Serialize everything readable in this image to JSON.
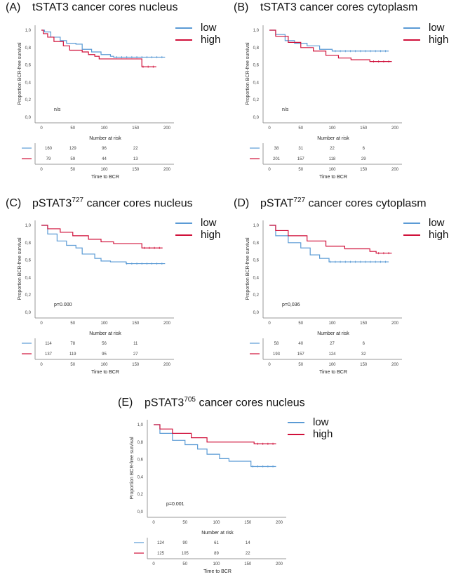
{
  "colors": {
    "low": "#5b9bd5",
    "high": "#d0103a",
    "axis": "#999999",
    "text": "#444444"
  },
  "common": {
    "ylabel": "Proportion BCR-free survival",
    "xlabel": "Time to BCR",
    "risk_title": "Number at risk",
    "legend_low": "low",
    "legend_high": "high"
  },
  "chart_data": [
    {
      "type": "line",
      "panel": "(A)",
      "title": "tSTAT3 cancer cores nucleus",
      "title_sup": "",
      "title_after": "",
      "annotation": "n/s",
      "xticks": [
        0,
        50,
        100,
        150,
        200
      ],
      "yticks": [
        "0,0",
        "0,2",
        "0,4",
        "0,6",
        "0,8",
        "1,0"
      ],
      "xlim": [
        0,
        200
      ],
      "ylim": [
        0,
        1
      ],
      "series": [
        {
          "name": "low",
          "points": [
            [
              0,
              1
            ],
            [
              5,
              0.98
            ],
            [
              15,
              0.92
            ],
            [
              30,
              0.88
            ],
            [
              40,
              0.85
            ],
            [
              55,
              0.84
            ],
            [
              65,
              0.78
            ],
            [
              80,
              0.75
            ],
            [
              95,
              0.72
            ],
            [
              110,
              0.7
            ],
            [
              115,
              0.69
            ],
            [
              197,
              0.69
            ]
          ]
        },
        {
          "name": "high",
          "points": [
            [
              0,
              1
            ],
            [
              3,
              0.96
            ],
            [
              10,
              0.92
            ],
            [
              20,
              0.87
            ],
            [
              35,
              0.82
            ],
            [
              45,
              0.77
            ],
            [
              65,
              0.75
            ],
            [
              75,
              0.72
            ],
            [
              85,
              0.7
            ],
            [
              92,
              0.67
            ],
            [
              160,
              0.67
            ],
            [
              160,
              0.58
            ],
            [
              183,
              0.58
            ]
          ]
        }
      ],
      "risk": {
        "low": [
          "160",
          "129",
          "96",
          "22"
        ],
        "high": [
          "79",
          "59",
          "44",
          "13"
        ]
      }
    },
    {
      "type": "line",
      "panel": "(B)",
      "title": "tSTAT3 cancer cores cytoplasm",
      "title_sup": "",
      "title_after": "",
      "annotation": "n/s",
      "xticks": [
        0,
        50,
        100,
        150,
        200
      ],
      "yticks": [
        "0,0",
        "0,2",
        "0,4",
        "0,6",
        "0,8",
        "1,0"
      ],
      "xlim": [
        0,
        200
      ],
      "ylim": [
        0,
        1
      ],
      "series": [
        {
          "name": "low",
          "points": [
            [
              0,
              1
            ],
            [
              10,
              0.95
            ],
            [
              25,
              0.88
            ],
            [
              40,
              0.85
            ],
            [
              60,
              0.82
            ],
            [
              80,
              0.78
            ],
            [
              100,
              0.76
            ],
            [
              190,
              0.76
            ]
          ]
        },
        {
          "name": "high",
          "points": [
            [
              0,
              1
            ],
            [
              10,
              0.93
            ],
            [
              30,
              0.86
            ],
            [
              50,
              0.8
            ],
            [
              70,
              0.76
            ],
            [
              90,
              0.71
            ],
            [
              110,
              0.68
            ],
            [
              130,
              0.66
            ],
            [
              160,
              0.66
            ],
            [
              160,
              0.64
            ],
            [
              195,
              0.64
            ]
          ]
        }
      ],
      "risk": {
        "low": [
          "38",
          "31",
          "22",
          "6"
        ],
        "high": [
          "201",
          "157",
          "118",
          "29"
        ]
      }
    },
    {
      "type": "line",
      "panel": "(C)",
      "title": "pSTAT3",
      "title_sup": "727",
      "title_after": " cancer cores nucleus",
      "annotation": "p=0.000",
      "xticks": [
        0,
        50,
        100,
        150,
        200
      ],
      "yticks": [
        "0,0",
        "0,2",
        "0,4",
        "0,6",
        "0,8",
        "1,0"
      ],
      "xlim": [
        0,
        200
      ],
      "ylim": [
        0,
        1
      ],
      "series": [
        {
          "name": "low",
          "points": [
            [
              0,
              1
            ],
            [
              10,
              0.9
            ],
            [
              25,
              0.82
            ],
            [
              40,
              0.77
            ],
            [
              55,
              0.74
            ],
            [
              65,
              0.67
            ],
            [
              85,
              0.62
            ],
            [
              95,
              0.59
            ],
            [
              110,
              0.58
            ],
            [
              135,
              0.58
            ],
            [
              135,
              0.56
            ],
            [
              197,
              0.56
            ]
          ]
        },
        {
          "name": "high",
          "points": [
            [
              0,
              1
            ],
            [
              10,
              0.96
            ],
            [
              30,
              0.92
            ],
            [
              50,
              0.88
            ],
            [
              75,
              0.84
            ],
            [
              95,
              0.81
            ],
            [
              115,
              0.79
            ],
            [
              160,
              0.79
            ],
            [
              160,
              0.74
            ],
            [
              193,
              0.74
            ]
          ]
        }
      ],
      "risk": {
        "low": [
          "114",
          "78",
          "56",
          "11"
        ],
        "high": [
          "137",
          "119",
          "95",
          "27"
        ]
      }
    },
    {
      "type": "line",
      "panel": "(D)",
      "title": "pSTAT",
      "title_sup": "727",
      "title_after": " cancer cores cytoplasm",
      "annotation": "p=0,036",
      "xticks": [
        0,
        50,
        100,
        150,
        200
      ],
      "yticks": [
        "0,0",
        "0,2",
        "0,4",
        "0,6",
        "0,8",
        "1,0"
      ],
      "xlim": [
        0,
        200
      ],
      "ylim": [
        0,
        1
      ],
      "series": [
        {
          "name": "low",
          "points": [
            [
              0,
              1
            ],
            [
              10,
              0.88
            ],
            [
              30,
              0.8
            ],
            [
              50,
              0.74
            ],
            [
              65,
              0.66
            ],
            [
              80,
              0.62
            ],
            [
              95,
              0.58
            ],
            [
              190,
              0.58
            ]
          ]
        },
        {
          "name": "high",
          "points": [
            [
              0,
              1
            ],
            [
              10,
              0.94
            ],
            [
              30,
              0.88
            ],
            [
              60,
              0.82
            ],
            [
              90,
              0.76
            ],
            [
              120,
              0.73
            ],
            [
              160,
              0.7
            ],
            [
              170,
              0.68
            ],
            [
              195,
              0.68
            ]
          ]
        }
      ],
      "risk": {
        "low": [
          "58",
          "40",
          "27",
          "6"
        ],
        "high": [
          "193",
          "157",
          "124",
          "32"
        ]
      }
    },
    {
      "type": "line",
      "panel": "(E)",
      "title": "pSTAT3",
      "title_sup": "705",
      "title_after": " cancer cores nucleus",
      "annotation": "p=0.001",
      "xticks": [
        0,
        50,
        100,
        150,
        200
      ],
      "yticks": [
        "0,0",
        "0,2",
        "0,4",
        "0,6",
        "0,8",
        "1,0"
      ],
      "xlim": [
        0,
        200
      ],
      "ylim": [
        0,
        1
      ],
      "series": [
        {
          "name": "low",
          "points": [
            [
              0,
              1
            ],
            [
              10,
              0.9
            ],
            [
              30,
              0.82
            ],
            [
              50,
              0.77
            ],
            [
              70,
              0.72
            ],
            [
              85,
              0.66
            ],
            [
              105,
              0.61
            ],
            [
              120,
              0.58
            ],
            [
              155,
              0.58
            ],
            [
              155,
              0.52
            ],
            [
              195,
              0.52
            ]
          ]
        },
        {
          "name": "high",
          "points": [
            [
              0,
              1
            ],
            [
              10,
              0.95
            ],
            [
              30,
              0.9
            ],
            [
              60,
              0.85
            ],
            [
              85,
              0.8
            ],
            [
              160,
              0.8
            ],
            [
              160,
              0.78
            ],
            [
              195,
              0.78
            ]
          ]
        }
      ],
      "risk": {
        "low": [
          "124",
          "90",
          "61",
          "14"
        ],
        "high": [
          "125",
          "105",
          "89",
          "22"
        ]
      }
    }
  ]
}
